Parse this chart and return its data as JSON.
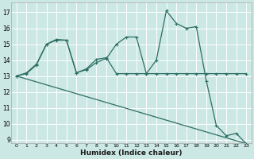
{
  "xlabel": "Humidex (Indice chaleur)",
  "bg_color": "#cce8e4",
  "line_color": "#2d6e63",
  "grid_color": "#ffffff",
  "xlim": [
    -0.5,
    23.5
  ],
  "ylim": [
    8.8,
    17.6
  ],
  "yticks": [
    9,
    10,
    11,
    12,
    13,
    14,
    15,
    16,
    17
  ],
  "xticks": [
    0,
    1,
    2,
    3,
    4,
    5,
    6,
    7,
    8,
    9,
    10,
    11,
    12,
    13,
    14,
    15,
    16,
    17,
    18,
    19,
    20,
    21,
    22,
    23
  ],
  "series1_x": [
    0,
    1,
    2,
    3,
    4,
    5,
    6,
    7,
    8,
    9,
    10,
    11,
    12,
    13,
    14,
    15,
    16,
    17,
    18,
    19,
    20,
    21,
    22,
    23
  ],
  "series1_y": [
    13.0,
    13.2,
    13.75,
    15.0,
    15.25,
    15.25,
    13.2,
    13.4,
    13.85,
    14.1,
    15.0,
    15.45,
    15.45,
    13.15,
    14.0,
    17.1,
    16.3,
    16.0,
    16.1,
    12.7,
    9.9,
    9.25,
    9.4,
    8.75
  ],
  "series2_x": [
    0,
    1,
    2,
    3,
    4,
    5,
    6,
    7,
    8,
    9,
    10,
    11,
    12,
    13,
    14,
    15,
    16,
    17,
    18,
    19,
    20,
    21,
    22,
    23
  ],
  "series2_y": [
    13.0,
    13.15,
    13.7,
    15.0,
    15.3,
    15.25,
    13.2,
    13.45,
    14.05,
    14.15,
    13.15,
    13.15,
    13.15,
    13.15,
    13.15,
    13.15,
    13.15,
    13.15,
    13.15,
    13.15,
    13.15,
    13.15,
    13.15,
    13.15
  ],
  "series3_x": [
    0,
    23
  ],
  "series3_y": [
    13.0,
    8.75
  ]
}
